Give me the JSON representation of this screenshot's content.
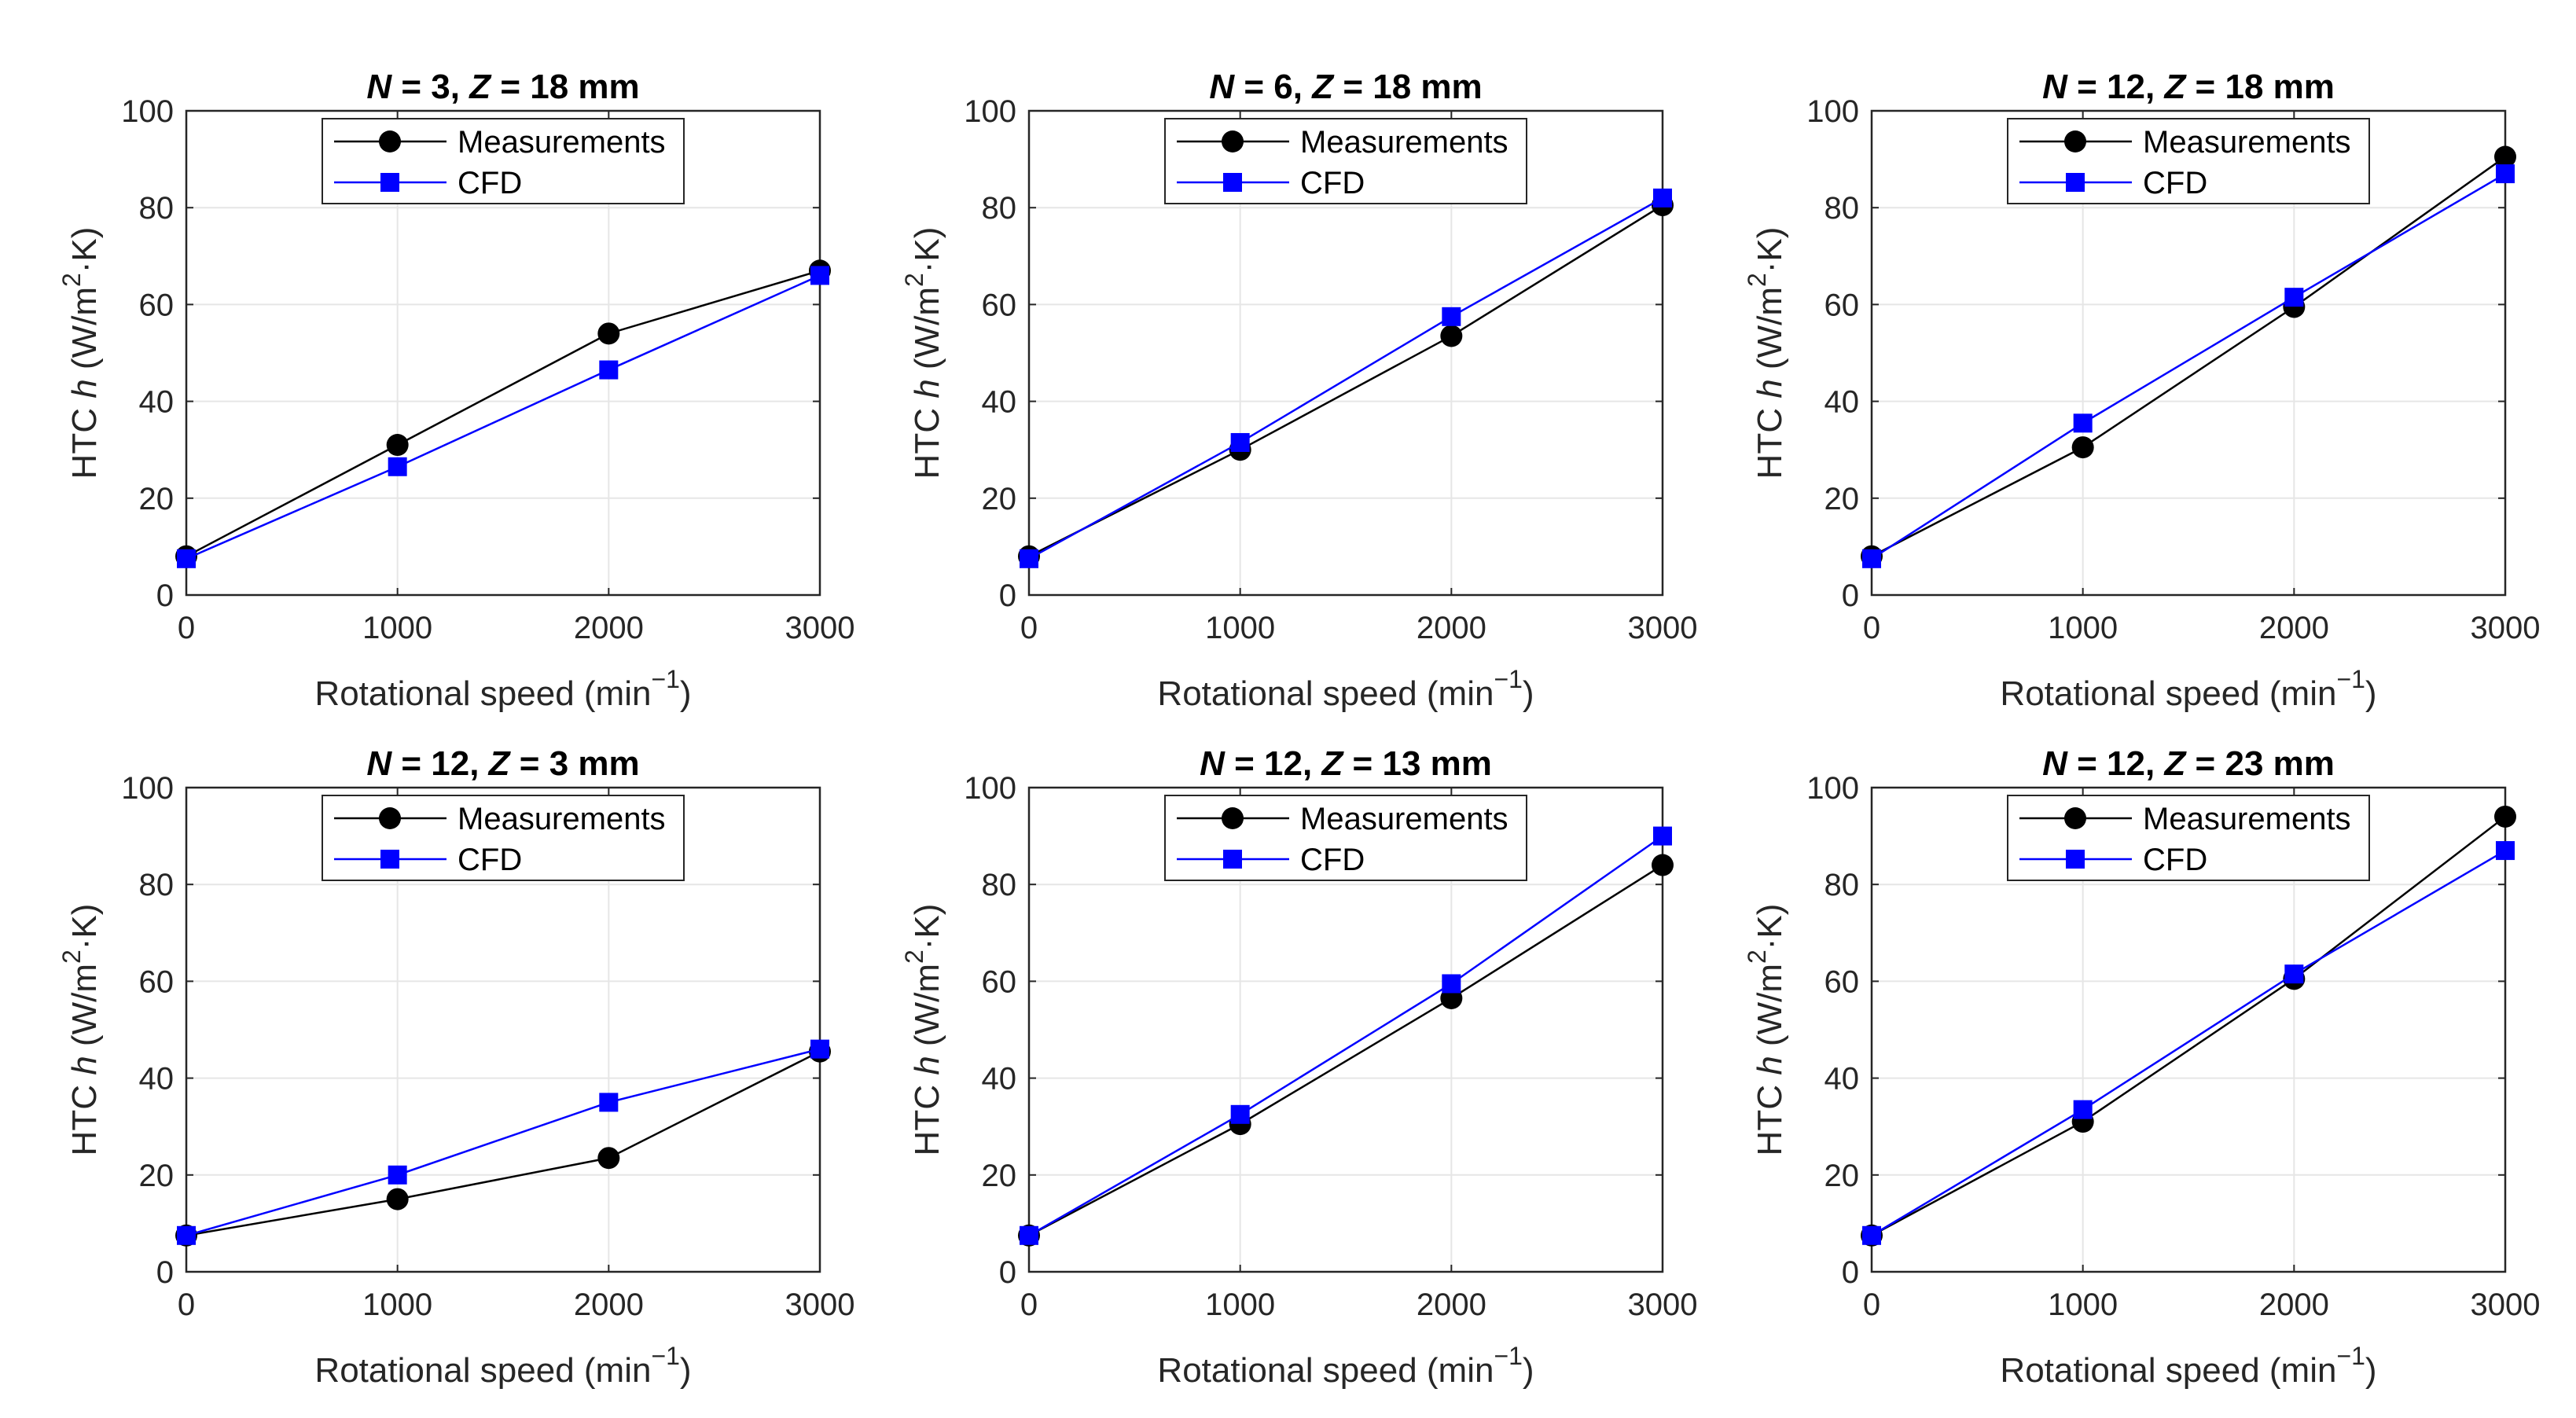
{
  "figure": {
    "colors": {
      "measurements": "#000000",
      "cfd": "#0000ff",
      "grid": "#e6e6e6",
      "axis": "#262626"
    }
  },
  "chart_data": [
    {
      "type": "line",
      "title": {
        "n_var": "N",
        "n_text": " = 3, ",
        "z_var": "Z",
        "z_text": " = 18 mm"
      },
      "xlabel": {
        "text": "Rotational speed (min",
        "sup": "−1",
        "close": ")"
      },
      "ylabel": {
        "pre": "HTC ",
        "var": "h",
        "post1": " (W/m",
        "sup": "2",
        "post2": "·K)"
      },
      "xlim": [
        0,
        3000
      ],
      "ylim": [
        0,
        100
      ],
      "xticks": [
        0,
        1000,
        2000,
        3000
      ],
      "yticks": [
        0,
        20,
        40,
        60,
        80,
        100
      ],
      "grid": true,
      "legend_position": "top-center",
      "x": [
        0,
        1000,
        2000,
        3000
      ],
      "series": [
        {
          "name": "Measurements",
          "marker": "circle",
          "values": [
            8,
            31,
            54,
            67
          ]
        },
        {
          "name": "CFD",
          "marker": "square",
          "values": [
            7.5,
            26.5,
            46.5,
            66
          ]
        }
      ]
    },
    {
      "type": "line",
      "title": {
        "n_var": "N",
        "n_text": " = 6, ",
        "z_var": "Z",
        "z_text": " = 18 mm"
      },
      "xlabel": {
        "text": "Rotational speed (min",
        "sup": "−1",
        "close": ")"
      },
      "ylabel": {
        "pre": "HTC ",
        "var": "h",
        "post1": " (W/m",
        "sup": "2",
        "post2": "·K)"
      },
      "xlim": [
        0,
        3000
      ],
      "ylim": [
        0,
        100
      ],
      "xticks": [
        0,
        1000,
        2000,
        3000
      ],
      "yticks": [
        0,
        20,
        40,
        60,
        80,
        100
      ],
      "grid": true,
      "legend_position": "top-center",
      "x": [
        0,
        1000,
        2000,
        3000
      ],
      "series": [
        {
          "name": "Measurements",
          "marker": "circle",
          "values": [
            8,
            30,
            53.5,
            80.5
          ]
        },
        {
          "name": "CFD",
          "marker": "square",
          "values": [
            7.5,
            31.5,
            57.5,
            82
          ]
        }
      ]
    },
    {
      "type": "line",
      "title": {
        "n_var": "N",
        "n_text": " = 12, ",
        "z_var": "Z",
        "z_text": " = 18 mm"
      },
      "xlabel": {
        "text": "Rotational speed (min",
        "sup": "−1",
        "close": ")"
      },
      "ylabel": {
        "pre": "HTC ",
        "var": "h",
        "post1": " (W/m",
        "sup": "2",
        "post2": "·K)"
      },
      "xlim": [
        0,
        3000
      ],
      "ylim": [
        0,
        100
      ],
      "xticks": [
        0,
        1000,
        2000,
        3000
      ],
      "yticks": [
        0,
        20,
        40,
        60,
        80,
        100
      ],
      "grid": true,
      "legend_position": "top-center",
      "x": [
        0,
        1000,
        2000,
        3000
      ],
      "series": [
        {
          "name": "Measurements",
          "marker": "circle",
          "values": [
            8,
            30.5,
            59.5,
            90.5
          ]
        },
        {
          "name": "CFD",
          "marker": "square",
          "values": [
            7.5,
            35.5,
            61.5,
            87
          ]
        }
      ]
    },
    {
      "type": "line",
      "title": {
        "n_var": "N",
        "n_text": " = 12, ",
        "z_var": "Z",
        "z_text": " = 3 mm"
      },
      "xlabel": {
        "text": "Rotational speed (min",
        "sup": "−1",
        "close": ")"
      },
      "ylabel": {
        "pre": "HTC ",
        "var": "h",
        "post1": " (W/m",
        "sup": "2",
        "post2": "·K)"
      },
      "xlim": [
        0,
        3000
      ],
      "ylim": [
        0,
        100
      ],
      "xticks": [
        0,
        1000,
        2000,
        3000
      ],
      "yticks": [
        0,
        20,
        40,
        60,
        80,
        100
      ],
      "grid": true,
      "legend_position": "top-center",
      "x": [
        0,
        1000,
        2000,
        3000
      ],
      "series": [
        {
          "name": "Measurements",
          "marker": "circle",
          "values": [
            7.5,
            15,
            23.5,
            45.5
          ]
        },
        {
          "name": "CFD",
          "marker": "square",
          "values": [
            7.5,
            20,
            35,
            46
          ]
        }
      ]
    },
    {
      "type": "line",
      "title": {
        "n_var": "N",
        "n_text": " = 12, ",
        "z_var": "Z",
        "z_text": " = 13 mm"
      },
      "xlabel": {
        "text": "Rotational speed (min",
        "sup": "−1",
        "close": ")"
      },
      "ylabel": {
        "pre": "HTC ",
        "var": "h",
        "post1": " (W/m",
        "sup": "2",
        "post2": "·K)"
      },
      "xlim": [
        0,
        3000
      ],
      "ylim": [
        0,
        100
      ],
      "xticks": [
        0,
        1000,
        2000,
        3000
      ],
      "yticks": [
        0,
        20,
        40,
        60,
        80,
        100
      ],
      "grid": true,
      "legend_position": "top-center",
      "x": [
        0,
        1000,
        2000,
        3000
      ],
      "series": [
        {
          "name": "Measurements",
          "marker": "circle",
          "values": [
            7.5,
            30.5,
            56.5,
            84
          ]
        },
        {
          "name": "CFD",
          "marker": "square",
          "values": [
            7.5,
            32.5,
            59.5,
            90
          ]
        }
      ]
    },
    {
      "type": "line",
      "title": {
        "n_var": "N",
        "n_text": " = 12, ",
        "z_var": "Z",
        "z_text": " = 23 mm"
      },
      "xlabel": {
        "text": "Rotational speed (min",
        "sup": "−1",
        "close": ")"
      },
      "ylabel": {
        "pre": "HTC ",
        "var": "h",
        "post1": " (W/m",
        "sup": "2",
        "post2": "·K)"
      },
      "xlim": [
        0,
        3000
      ],
      "ylim": [
        0,
        100
      ],
      "xticks": [
        0,
        1000,
        2000,
        3000
      ],
      "yticks": [
        0,
        20,
        40,
        60,
        80,
        100
      ],
      "grid": true,
      "legend_position": "top-center",
      "x": [
        0,
        1000,
        2000,
        3000
      ],
      "series": [
        {
          "name": "Measurements",
          "marker": "circle",
          "values": [
            7.5,
            31,
            60.5,
            94
          ]
        },
        {
          "name": "CFD",
          "marker": "square",
          "values": [
            7.5,
            33.5,
            61.5,
            87
          ]
        }
      ]
    }
  ]
}
